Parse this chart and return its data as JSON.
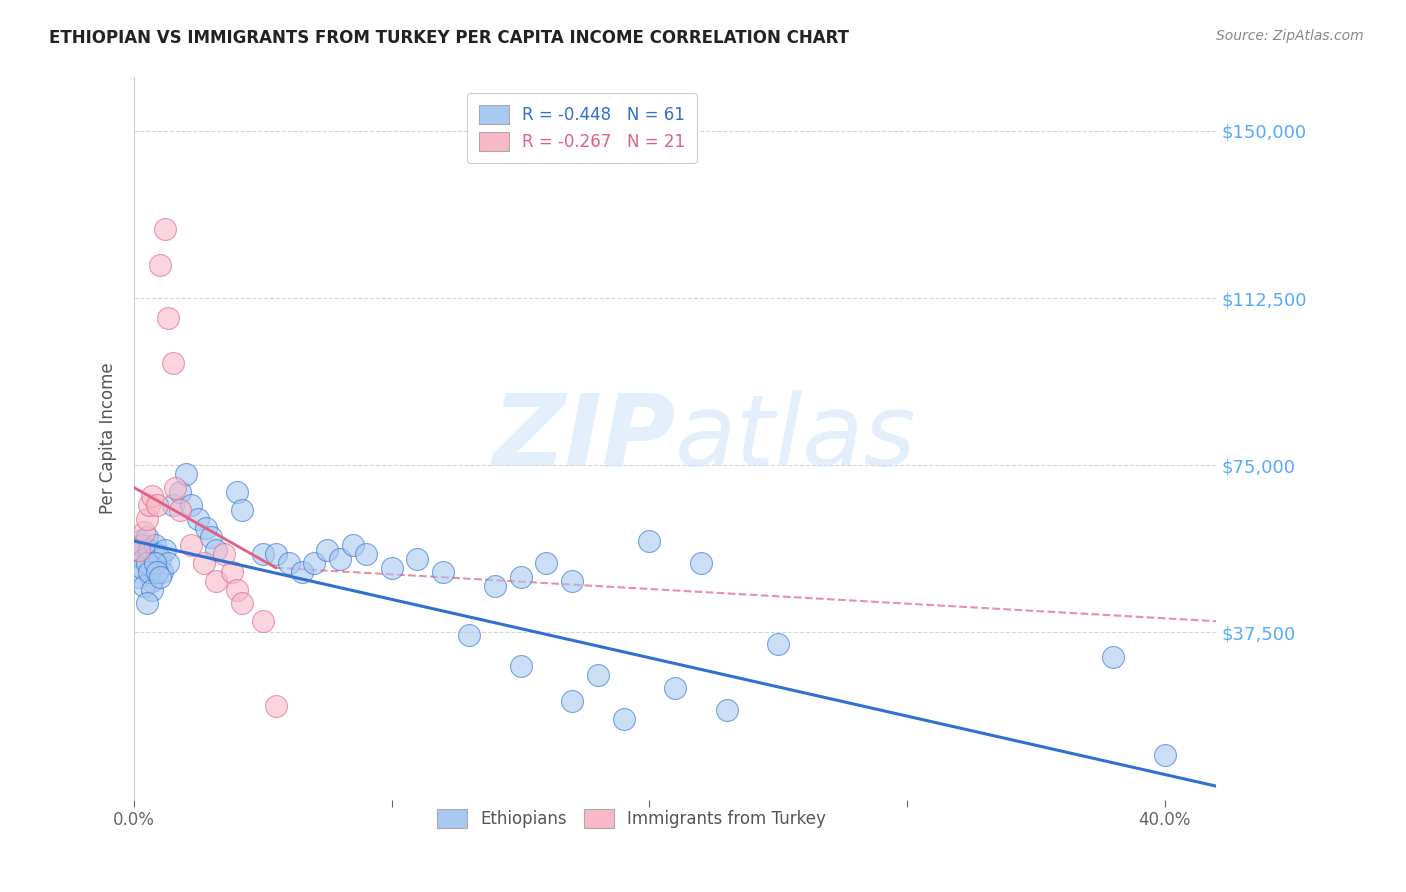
{
  "title": "ETHIOPIAN VS IMMIGRANTS FROM TURKEY PER CAPITA INCOME CORRELATION CHART",
  "source": "Source: ZipAtlas.com",
  "ylabel": "Per Capita Income",
  "yticks": [
    0,
    37500,
    75000,
    112500,
    150000
  ],
  "ytick_labels": [
    "",
    "$37,500",
    "$75,000",
    "$112,500",
    "$150,000"
  ],
  "xlim": [
    0.0,
    0.42
  ],
  "ylim": [
    0,
    162000
  ],
  "watermark_zip": "ZIP",
  "watermark_atlas": "atlas",
  "legend_entries": [
    {
      "label": "R = -0.448   N = 61"
    },
    {
      "label": "R = -0.267   N = 21"
    }
  ],
  "legend_bottom_labels": [
    "Ethiopians",
    "Immigrants from Turkey"
  ],
  "blue_scatter_color": "#a8c8f0",
  "pink_scatter_color": "#f8b8c8",
  "blue_line_color": "#3070d0",
  "pink_line_color": "#e06080",
  "blue_scatter": [
    [
      0.001,
      56000
    ],
    [
      0.002,
      58000
    ],
    [
      0.003,
      57000
    ],
    [
      0.004,
      54000
    ],
    [
      0.005,
      59000
    ],
    [
      0.006,
      56000
    ],
    [
      0.007,
      49000
    ],
    [
      0.008,
      57000
    ],
    [
      0.009,
      55000
    ],
    [
      0.01,
      54000
    ],
    [
      0.011,
      51000
    ],
    [
      0.012,
      56000
    ],
    [
      0.013,
      53000
    ],
    [
      0.002,
      50000
    ],
    [
      0.003,
      52000
    ],
    [
      0.004,
      48000
    ],
    [
      0.005,
      53000
    ],
    [
      0.006,
      51000
    ],
    [
      0.007,
      47000
    ],
    [
      0.008,
      53000
    ],
    [
      0.009,
      51000
    ],
    [
      0.01,
      50000
    ],
    [
      0.015,
      66000
    ],
    [
      0.018,
      69000
    ],
    [
      0.02,
      73000
    ],
    [
      0.022,
      66000
    ],
    [
      0.025,
      63000
    ],
    [
      0.028,
      61000
    ],
    [
      0.03,
      59000
    ],
    [
      0.032,
      56000
    ],
    [
      0.04,
      69000
    ],
    [
      0.042,
      65000
    ],
    [
      0.05,
      55000
    ],
    [
      0.055,
      55000
    ],
    [
      0.06,
      53000
    ],
    [
      0.065,
      51000
    ],
    [
      0.07,
      53000
    ],
    [
      0.075,
      56000
    ],
    [
      0.08,
      54000
    ],
    [
      0.085,
      57000
    ],
    [
      0.09,
      55000
    ],
    [
      0.1,
      52000
    ],
    [
      0.11,
      54000
    ],
    [
      0.12,
      51000
    ],
    [
      0.14,
      48000
    ],
    [
      0.15,
      50000
    ],
    [
      0.16,
      53000
    ],
    [
      0.17,
      49000
    ],
    [
      0.2,
      58000
    ],
    [
      0.22,
      53000
    ],
    [
      0.13,
      37000
    ],
    [
      0.15,
      30000
    ],
    [
      0.18,
      28000
    ],
    [
      0.25,
      35000
    ],
    [
      0.21,
      25000
    ],
    [
      0.23,
      20000
    ],
    [
      0.17,
      22000
    ],
    [
      0.19,
      18000
    ],
    [
      0.38,
      32000
    ],
    [
      0.4,
      10000
    ],
    [
      0.005,
      44000
    ]
  ],
  "pink_scatter": [
    [
      0.002,
      56000
    ],
    [
      0.004,
      60000
    ],
    [
      0.005,
      63000
    ],
    [
      0.006,
      66000
    ],
    [
      0.007,
      68000
    ],
    [
      0.009,
      66000
    ],
    [
      0.01,
      120000
    ],
    [
      0.012,
      128000
    ],
    [
      0.013,
      108000
    ],
    [
      0.015,
      98000
    ],
    [
      0.016,
      70000
    ],
    [
      0.018,
      65000
    ],
    [
      0.022,
      57000
    ],
    [
      0.027,
      53000
    ],
    [
      0.032,
      49000
    ],
    [
      0.035,
      55000
    ],
    [
      0.038,
      51000
    ],
    [
      0.04,
      47000
    ],
    [
      0.042,
      44000
    ],
    [
      0.05,
      40000
    ],
    [
      0.055,
      21000
    ]
  ],
  "blue_trendline": [
    [
      0.0,
      58000
    ],
    [
      0.42,
      3000
    ]
  ],
  "pink_trendline_solid": [
    [
      0.0,
      70000
    ],
    [
      0.055,
      52000
    ]
  ],
  "pink_trendline_dashed": [
    [
      0.055,
      52000
    ],
    [
      0.42,
      40000
    ]
  ],
  "background_color": "#ffffff",
  "grid_color": "#cccccc",
  "title_color": "#222222",
  "ytick_color": "#55aaff",
  "legend_text_blue": "#3070d0",
  "legend_text_pink": "#e06080",
  "legend_n_color": "#3070d0"
}
